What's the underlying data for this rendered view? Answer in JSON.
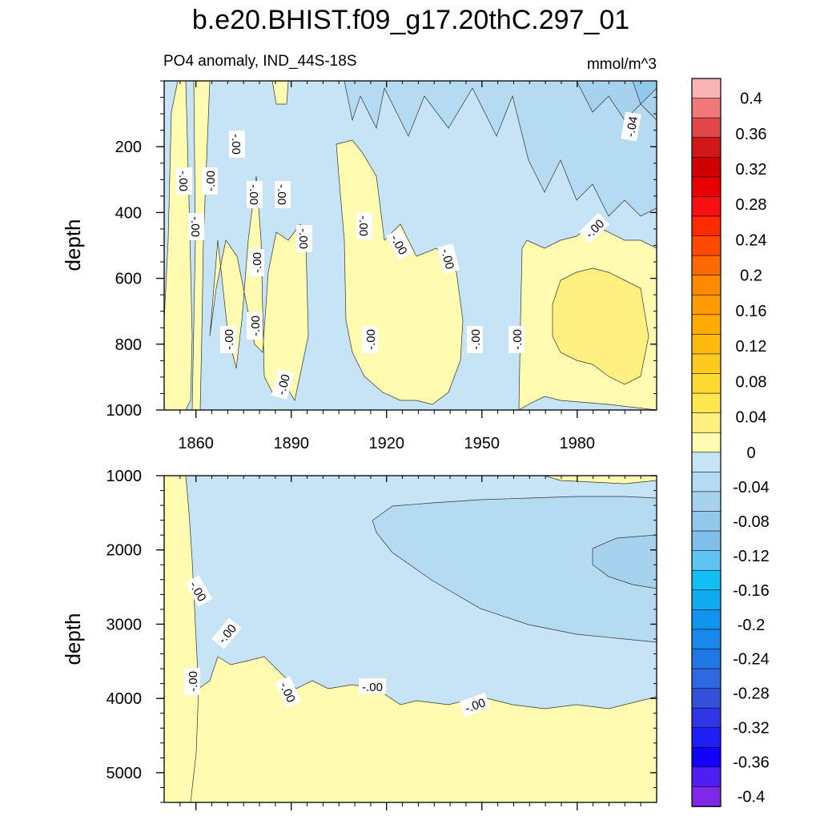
{
  "title": "b.e20.BHIST.f09_g17.20thC.297_01",
  "subtitle_left": "PO4 anomaly, IND_44S-18S",
  "subtitle_right": "mmol/m^3",
  "chart_data": [
    {
      "type": "contour",
      "panel": "upper",
      "ylabel": "depth",
      "y_reversed": true,
      "xlim": [
        1850,
        2005
      ],
      "ylim": [
        0,
        1000
      ],
      "x_ticks": [
        "1860",
        "1890",
        "1920",
        "1950",
        "1980"
      ],
      "y_ticks": [
        "200",
        "400",
        "600",
        "800",
        "1000"
      ],
      "contour_labels": [
        "-.00",
        "-.00",
        "-.00",
        "-.00",
        "-.00",
        "-.00",
        "-.00",
        "-.00",
        "-.00",
        "-.00",
        "-.00",
        "-.00",
        "-.00",
        "-.00",
        "-.00",
        "-.00",
        "-.00",
        "-.04",
        "-.00"
      ]
    },
    {
      "type": "contour",
      "panel": "lower",
      "ylabel": "depth",
      "y_reversed": true,
      "xlim": [
        1850,
        2005
      ],
      "ylim": [
        1000,
        5400
      ],
      "y_ticks": [
        "1000",
        "2000",
        "3000",
        "4000",
        "5000"
      ],
      "contour_labels": [
        "-.00",
        "-.00",
        "-.00",
        "-.00",
        "-.00",
        "-.00"
      ]
    }
  ],
  "colorbar": {
    "labels": [
      "0.4",
      "0.36",
      "0.32",
      "0.28",
      "0.24",
      "0.2",
      "0.16",
      "0.12",
      "0.08",
      "0.04",
      "0",
      "-0.04",
      "-0.08",
      "-0.12",
      "-0.16",
      "-0.2",
      "-0.24",
      "-0.28",
      "-0.32",
      "-0.36",
      "-0.4"
    ],
    "colors": [
      "#fbb4b4",
      "#f07878",
      "#e04848",
      "#d01818",
      "#d00000",
      "#e80000",
      "#f81010",
      "#ff2a00",
      "#ff4800",
      "#ff6a00",
      "#ff8a00",
      "#ff9a00",
      "#ffaa00",
      "#ffba10",
      "#ffca20",
      "#ffd830",
      "#ffe650",
      "#fff080",
      "#fffbb0",
      "#c6e4f5",
      "#b4dbf1",
      "#a6d2ee",
      "#92c8ec",
      "#7ec0ea",
      "#5ec4f2",
      "#10c0f5",
      "#10aaf0",
      "#1094ee",
      "#1888ea",
      "#2078e6",
      "#3068e2",
      "#3450da",
      "#2e36e6",
      "#1e1ef6",
      "#1400fa",
      "#4e1ef2",
      "#8028e8"
    ]
  }
}
